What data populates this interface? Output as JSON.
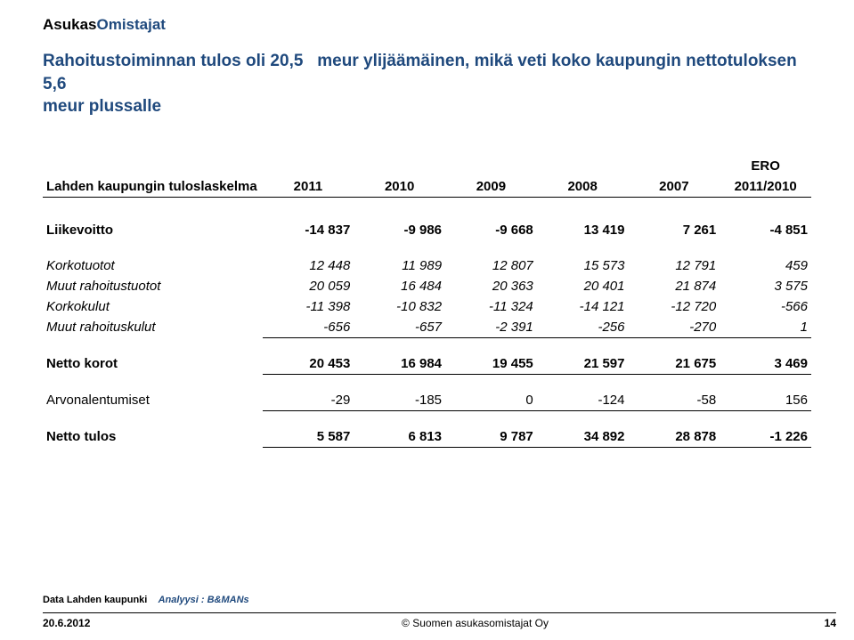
{
  "brand": {
    "part1": "Asukas",
    "part2": "Omistajat"
  },
  "headline_l1": "Rahoitustoiminnan tulos oli 20,5",
  "headline_l2": "meur ylijäämäinen, mikä veti koko kaupungin nettotuloksen 5,6",
  "headline_l3": "meur plussalle",
  "table": {
    "title": "Lahden kaupungin tuloslaskelma",
    "years": [
      "2011",
      "2010",
      "2009",
      "2008",
      "2007"
    ],
    "ero_top": "ERO",
    "ero_bot": "2011/2010",
    "rows": {
      "liikevoitto": {
        "label": "Liikevoitto",
        "vals": [
          "-14 837",
          "-9 986",
          "-9 668",
          "13 419",
          "7 261"
        ],
        "ero": "-4 851"
      },
      "korkotuotot": {
        "label": "Korkotuotot",
        "vals": [
          "12 448",
          "11 989",
          "12 807",
          "15 573",
          "12 791"
        ],
        "ero": "459"
      },
      "muutrahoitustuotot": {
        "label": "Muut rahoitustuotot",
        "vals": [
          "20 059",
          "16 484",
          "20 363",
          "20 401",
          "21 874"
        ],
        "ero": "3 575"
      },
      "korkokulut": {
        "label": "Korkokulut",
        "vals": [
          "-11 398",
          "-10 832",
          "-11 324",
          "-14 121",
          "-12 720"
        ],
        "ero": "-566"
      },
      "muutrahoituskulut": {
        "label": "Muut rahoituskulut",
        "vals": [
          "-656",
          "-657",
          "-2 391",
          "-256",
          "-270"
        ],
        "ero": "1"
      },
      "nettokorot": {
        "label": "Netto korot",
        "vals": [
          "20 453",
          "16 984",
          "19 455",
          "21 597",
          "21 675"
        ],
        "ero": "3 469"
      },
      "arvonalentumiset": {
        "label": "Arvonalentumiset",
        "vals": [
          "-29",
          "-185",
          "0",
          "-124",
          "-58"
        ],
        "ero": "156"
      },
      "nettotulos": {
        "label": "Netto tulos",
        "vals": [
          "5 587",
          "6 813",
          "9 787",
          "34 892",
          "28 878"
        ],
        "ero": "-1 226"
      }
    }
  },
  "footer": {
    "source_data": "Data Lahden kaupunki",
    "source_analysis": "Analyysi : B&MANs",
    "date": "20.6.2012",
    "copyright": "© Suomen asukasomistajat Oy",
    "page": "14"
  },
  "style": {
    "brand_color": "#1f497d",
    "headline_color": "#1f497d",
    "border_color": "#000000",
    "bg": "#ffffff"
  }
}
